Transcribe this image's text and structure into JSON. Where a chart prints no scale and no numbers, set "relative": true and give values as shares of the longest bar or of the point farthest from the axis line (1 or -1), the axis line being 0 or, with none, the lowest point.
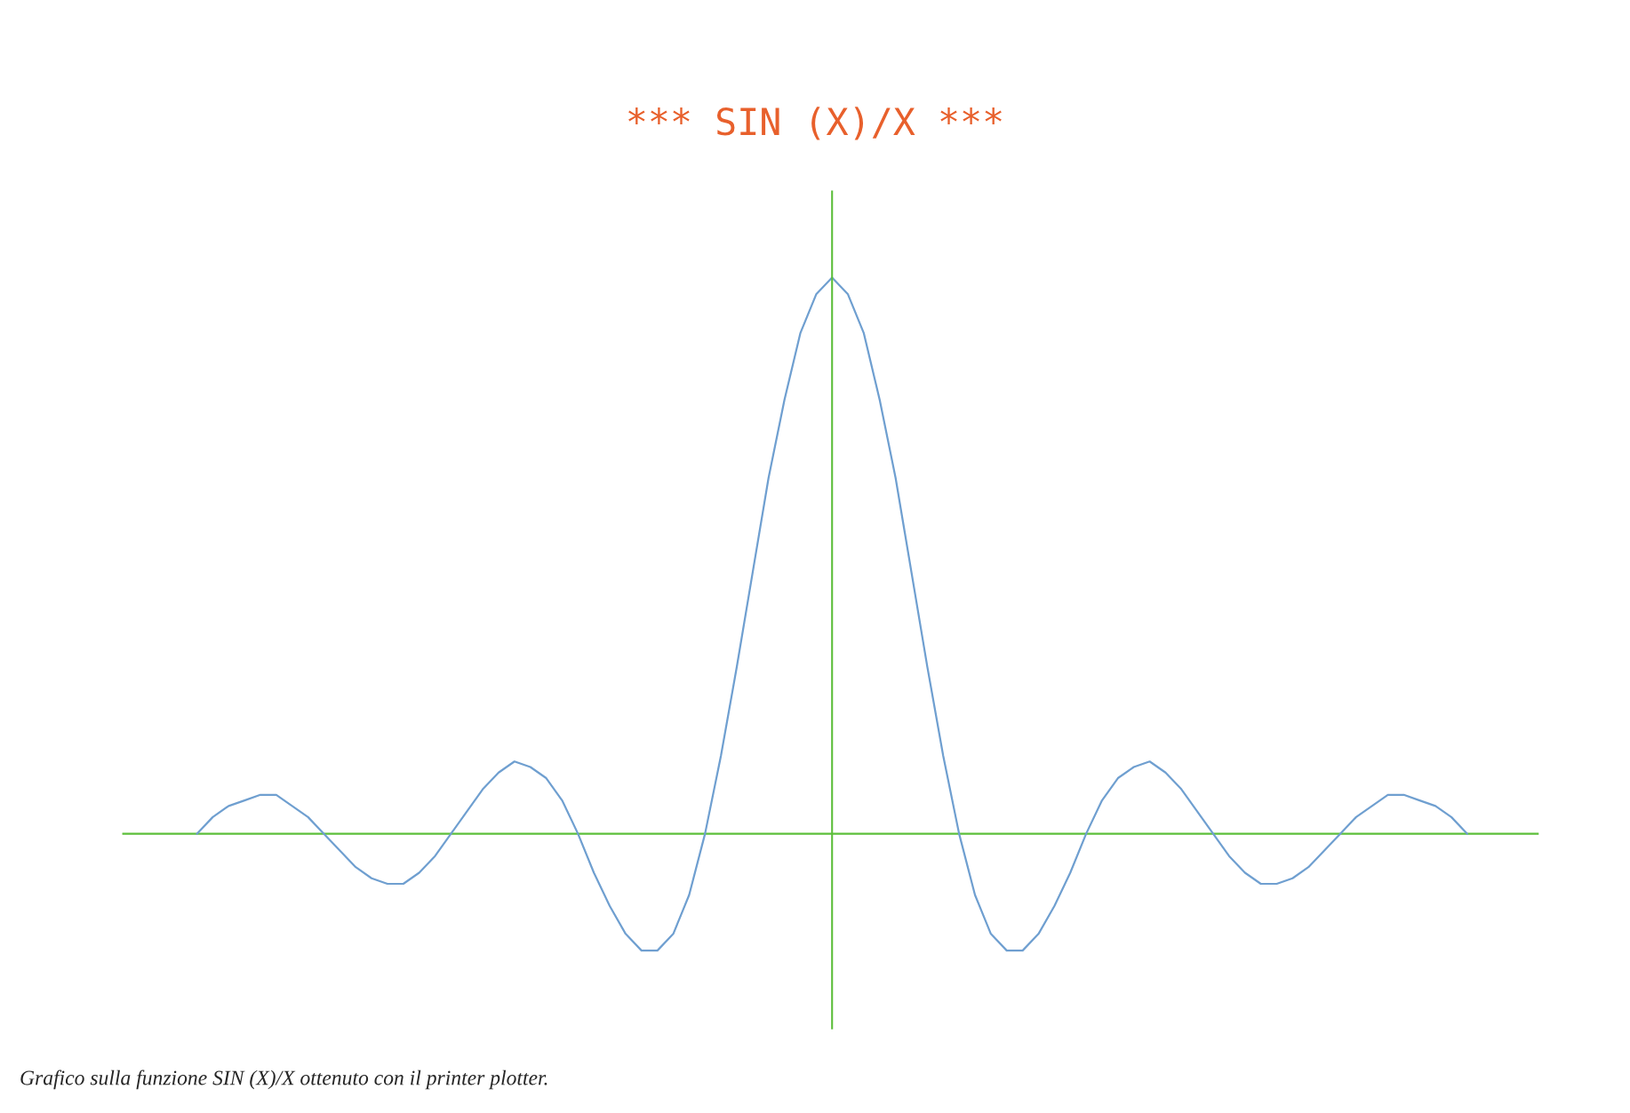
{
  "chart_data": {
    "type": "line",
    "title": "*** SIN (X)/X ***",
    "relative": true,
    "categories": [
      null,
      null,
      null,
      null,
      null,
      null,
      null,
      null,
      null,
      null,
      null,
      null,
      null,
      null,
      null,
      null,
      null,
      null,
      null,
      null,
      null,
      null,
      null,
      null,
      null,
      null,
      null,
      null,
      null,
      null,
      null,
      null,
      null,
      null,
      null,
      null,
      null,
      null,
      null,
      null,
      null,
      null,
      null,
      null,
      null,
      null,
      null,
      null,
      null,
      null,
      null,
      null,
      null,
      null,
      null,
      null,
      null,
      null,
      null,
      null,
      null,
      null,
      null,
      null,
      null,
      null,
      null,
      null,
      null,
      null,
      null,
      null,
      null,
      null,
      null,
      null,
      null,
      null,
      null,
      null,
      null
    ],
    "series": [
      {
        "color": "#6f9fd0",
        "values": [
          0,
          0.03,
          0.05,
          0.06,
          0.07,
          0.07,
          0.05,
          0.03,
          0,
          -0.03,
          -0.06,
          -0.08,
          -0.09,
          -0.09,
          -0.07,
          -0.04,
          0,
          0.04,
          0.08,
          0.11,
          0.13,
          0.12,
          0.1,
          0.06,
          0,
          -0.07,
          -0.13,
          -0.18,
          -0.21,
          -0.21,
          -0.18,
          -0.11,
          0,
          0.14,
          0.3,
          0.47,
          0.64,
          0.78,
          0.9,
          0.97,
          1,
          0.97,
          0.9,
          0.78,
          0.64,
          0.47,
          0.3,
          0.14,
          0,
          -0.11,
          -0.18,
          -0.21,
          -0.21,
          -0.18,
          -0.13,
          -0.07,
          0,
          0.06,
          0.1,
          0.12,
          0.13,
          0.11,
          0.08,
          0.04,
          0,
          -0.04,
          -0.07,
          -0.09,
          -0.09,
          -0.08,
          -0.06,
          -0.03,
          0,
          0.03,
          0.05,
          0.07,
          0.07,
          0.06,
          0.05,
          0.03,
          0
        ]
      }
    ],
    "ref_lines": [
      {
        "axis": "y",
        "value": 0,
        "color": "#5cbf3a"
      }
    ],
    "annotations": [
      "Grafico sulla funzione SIN (X)/X ottenuto con il printer plotter."
    ]
  }
}
